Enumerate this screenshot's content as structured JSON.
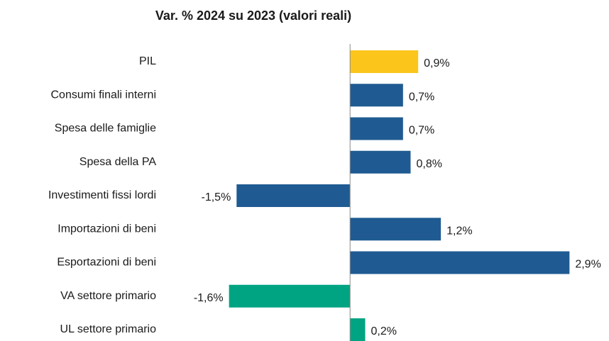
{
  "chart_data": {
    "type": "barh",
    "title": "Var. % 2024 su 2023 (valori reali)",
    "categories": [
      "PIL",
      "Consumi finali interni",
      "Spesa delle famiglie",
      "Spesa della PA",
      "Investimenti fissi lordi",
      "Importazioni di beni",
      "Esportazioni di beni",
      "VA settore primario",
      "UL settore primario"
    ],
    "values": [
      0.9,
      0.7,
      0.7,
      0.8,
      -1.5,
      1.2,
      2.9,
      -1.6,
      0.2
    ],
    "value_labels": [
      "0,9%",
      "0,7%",
      "0,7%",
      "0,8%",
      "-1,5%",
      "1,2%",
      "2,9%",
      "-1,6%",
      "0,2%"
    ],
    "colors": [
      "#fbc51c",
      "#1f5b92",
      "#1f5b92",
      "#1f5b92",
      "#1f5b92",
      "#1f5b92",
      "#1f5b92",
      "#00a482",
      "#00a482"
    ],
    "xlim": [
      -2,
      3
    ]
  }
}
